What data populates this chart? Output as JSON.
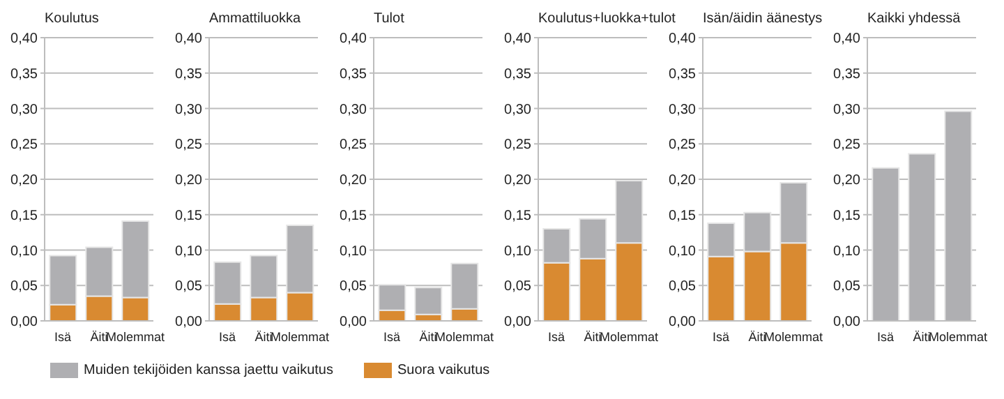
{
  "chart_data": [
    {
      "type": "bar",
      "title": "Koulutus",
      "categories": [
        "Isä",
        "Äiti",
        "Molemmat"
      ],
      "stacked": true,
      "grid": "y",
      "legend": "bottom",
      "ylim": [
        0,
        0.4
      ],
      "yticks": [
        {
          "value": 0,
          "label": "0,00"
        },
        {
          "value": 0.05,
          "label": "0,05"
        },
        {
          "value": 0.1,
          "label": "0,10"
        },
        {
          "value": 0.15,
          "label": "0,15"
        },
        {
          "value": 0.2,
          "label": "0,20"
        },
        {
          "value": 0.25,
          "label": "0,25"
        },
        {
          "value": 0.3,
          "label": "0,30"
        },
        {
          "value": 0.35,
          "label": "0,35"
        },
        {
          "value": 0.4,
          "label": "0,40"
        }
      ],
      "series": [
        {
          "name": "Suora vaikutus",
          "color": "#d98a31",
          "values": [
            0.023,
            0.035,
            0.033
          ]
        },
        {
          "name": "Muiden tekijöiden kanssa jaettu vaikutus",
          "color": "#afafb2",
          "values": [
            0.069,
            0.069,
            0.108
          ]
        }
      ]
    },
    {
      "type": "bar",
      "title": "Ammattiluokka",
      "categories": [
        "Isä",
        "Äiti",
        "Molemmat"
      ],
      "stacked": true,
      "grid": "y",
      "ylim": [
        0,
        0.4
      ],
      "yticks": [
        {
          "value": 0,
          "label": "0,00"
        },
        {
          "value": 0.05,
          "label": "0,05"
        },
        {
          "value": 0.1,
          "label": "0,10"
        },
        {
          "value": 0.15,
          "label": "0,15"
        },
        {
          "value": 0.2,
          "label": "0,20"
        },
        {
          "value": 0.25,
          "label": "0,25"
        },
        {
          "value": 0.3,
          "label": "0,30"
        },
        {
          "value": 0.35,
          "label": "0,35"
        },
        {
          "value": 0.4,
          "label": "0,40"
        }
      ],
      "series": [
        {
          "color": "#d98a31",
          "values": [
            0.024,
            0.033,
            0.04
          ]
        },
        {
          "color": "#afafb2",
          "values": [
            0.059,
            0.059,
            0.095
          ]
        }
      ]
    },
    {
      "type": "bar",
      "title": "Tulot",
      "categories": [
        "Isä",
        "Äiti",
        "Molemmat"
      ],
      "stacked": true,
      "grid": "y",
      "ylim": [
        0,
        0.4
      ],
      "yticks": [
        {
          "value": 0,
          "label": "0,00"
        },
        {
          "value": 0.05,
          "label": "0,05"
        },
        {
          "value": 0.1,
          "label": "0,10"
        },
        {
          "value": 0.15,
          "label": "0,15"
        },
        {
          "value": 0.2,
          "label": "0,20"
        },
        {
          "value": 0.25,
          "label": "0,25"
        },
        {
          "value": 0.3,
          "label": "0,30"
        },
        {
          "value": 0.35,
          "label": "0,35"
        },
        {
          "value": 0.4,
          "label": "0,40"
        }
      ],
      "series": [
        {
          "color": "#d98a31",
          "values": [
            0.015,
            0.009,
            0.017
          ]
        },
        {
          "color": "#afafb2",
          "values": [
            0.036,
            0.038,
            0.064
          ]
        }
      ]
    },
    {
      "type": "bar",
      "title": "Koulutus+luokka+tulot",
      "categories": [
        "Isä",
        "Äiti",
        "Molemmat"
      ],
      "stacked": true,
      "grid": "y",
      "ylim": [
        0,
        0.4
      ],
      "yticks": [
        {
          "value": 0,
          "label": "0,00"
        },
        {
          "value": 0.05,
          "label": "0,05"
        },
        {
          "value": 0.1,
          "label": "0,10"
        },
        {
          "value": 0.15,
          "label": "0,15"
        },
        {
          "value": 0.2,
          "label": "0,20"
        },
        {
          "value": 0.25,
          "label": "0,25"
        },
        {
          "value": 0.3,
          "label": "0,30"
        },
        {
          "value": 0.35,
          "label": "0,35"
        },
        {
          "value": 0.4,
          "label": "0,40"
        }
      ],
      "series": [
        {
          "color": "#d98a31",
          "values": [
            0.082,
            0.088,
            0.11
          ]
        },
        {
          "color": "#afafb2",
          "values": [
            0.048,
            0.056,
            0.088
          ]
        }
      ]
    },
    {
      "type": "bar",
      "title": "Isän/äidin äänestys",
      "categories": [
        "Isä",
        "Äiti",
        "Molemmat"
      ],
      "stacked": true,
      "grid": "y",
      "ylim": [
        0,
        0.4
      ],
      "yticks": [
        {
          "value": 0,
          "label": "0,00"
        },
        {
          "value": 0.05,
          "label": "0,05"
        },
        {
          "value": 0.1,
          "label": "0,10"
        },
        {
          "value": 0.15,
          "label": "0,15"
        },
        {
          "value": 0.2,
          "label": "0,20"
        },
        {
          "value": 0.25,
          "label": "0,25"
        },
        {
          "value": 0.3,
          "label": "0,30"
        },
        {
          "value": 0.35,
          "label": "0,35"
        },
        {
          "value": 0.4,
          "label": "0,40"
        }
      ],
      "series": [
        {
          "color": "#d98a31",
          "values": [
            0.091,
            0.098,
            0.11
          ]
        },
        {
          "color": "#afafb2",
          "values": [
            0.047,
            0.055,
            0.085
          ]
        }
      ]
    },
    {
      "type": "bar",
      "title": "Kaikki yhdessä",
      "categories": [
        "Isä",
        "Äiti",
        "Molemmat"
      ],
      "stacked": true,
      "grid": "y",
      "ylim": [
        0,
        0.4
      ],
      "yticks": [
        {
          "value": 0,
          "label": "0,00"
        },
        {
          "value": 0.05,
          "label": "0,05"
        },
        {
          "value": 0.1,
          "label": "0,10"
        },
        {
          "value": 0.15,
          "label": "0,15"
        },
        {
          "value": 0.2,
          "label": "0,20"
        },
        {
          "value": 0.25,
          "label": "0,25"
        },
        {
          "value": 0.3,
          "label": "0,30"
        },
        {
          "value": 0.35,
          "label": "0,35"
        },
        {
          "value": 0.4,
          "label": "0,40"
        }
      ],
      "series": [
        {
          "color": "#afafb2",
          "values": [
            0.216,
            0.236,
            0.296
          ]
        }
      ]
    }
  ]
}
